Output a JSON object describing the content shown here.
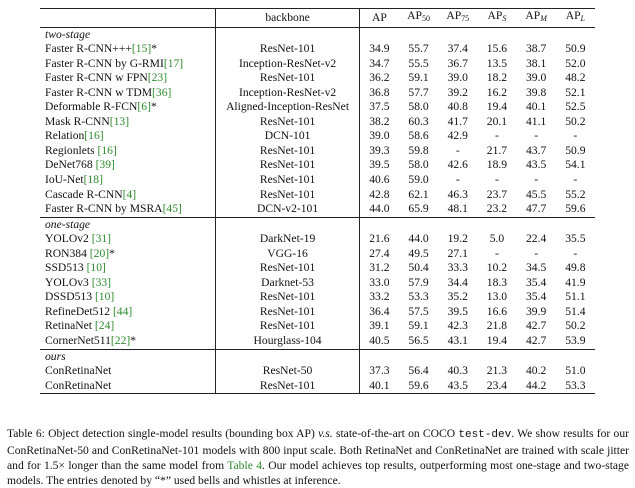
{
  "table": {
    "headers": {
      "method": "",
      "backbone": "backbone",
      "ap": "AP",
      "ap50": {
        "base": "AP",
        "sub": "50"
      },
      "ap75": {
        "base": "AP",
        "sub": "75"
      },
      "aps": {
        "base": "AP",
        "sub": "S"
      },
      "apm": {
        "base": "AP",
        "sub": "M"
      },
      "apl": {
        "base": "AP",
        "sub": "L"
      }
    },
    "sections": [
      {
        "label": "two-stage",
        "rows": [
          {
            "name": "Faster R-CNN+++",
            "cite": "[15]",
            "suffix": "*",
            "backbone": "ResNet-101",
            "values": [
              "34.9",
              "55.7",
              "37.4",
              "15.6",
              "38.7",
              "50.9"
            ]
          },
          {
            "name": "Faster R-CNN by G-RMI",
            "cite": "[17]",
            "suffix": "",
            "backbone": "Inception-ResNet-v2",
            "values": [
              "34.7",
              "55.5",
              "36.7",
              "13.5",
              "38.1",
              "52.0"
            ]
          },
          {
            "name": "Faster R-CNN w FPN",
            "cite": "[23]",
            "suffix": "",
            "backbone": "ResNet-101",
            "values": [
              "36.2",
              "59.1",
              "39.0",
              "18.2",
              "39.0",
              "48.2"
            ]
          },
          {
            "name": "Faster R-CNN w TDM",
            "cite": "[36]",
            "suffix": "",
            "backbone": "Inception-ResNet-v2",
            "values": [
              "36.8",
              "57.7",
              "39.2",
              "16.2",
              "39.8",
              "52.1"
            ]
          },
          {
            "name": "Deformable R-FCN",
            "cite": "[6]",
            "suffix": "*",
            "backbone": "Aligned-Inception-ResNet",
            "values": [
              "37.5",
              "58.0",
              "40.8",
              "19.4",
              "40.1",
              "52.5"
            ]
          },
          {
            "name": "Mask R-CNN",
            "cite": "[13]",
            "suffix": "",
            "backbone": "ResNet-101",
            "values": [
              "38.2",
              "60.3",
              "41.7",
              "20.1",
              "41.1",
              "50.2"
            ]
          },
          {
            "name": "Relation",
            "cite": "[16]",
            "suffix": "",
            "backbone": "DCN-101",
            "values": [
              "39.0",
              "58.6",
              "42.9",
              "-",
              "-",
              "-"
            ]
          },
          {
            "name": "Regionlets ",
            "cite": "[16]",
            "suffix": "",
            "backbone": "ResNet-101",
            "values": [
              "39.3",
              "59.8",
              "-",
              "21.7",
              "43.7",
              "50.9"
            ]
          },
          {
            "name": "DeNet768 ",
            "cite": "[39]",
            "suffix": "",
            "backbone": "ResNet-101",
            "values": [
              "39.5",
              "58.0",
              "42.6",
              "18.9",
              "43.5",
              "54.1"
            ]
          },
          {
            "name": "IoU-Net",
            "cite": "[18]",
            "suffix": "",
            "backbone": "ResNet-101",
            "values": [
              "40.6",
              "59.0",
              "-",
              "-",
              "-",
              "-"
            ]
          },
          {
            "name": "Cascade R-CNN",
            "cite": "[4]",
            "suffix": "",
            "backbone": "ResNet-101",
            "values": [
              "42.8",
              "62.1",
              "46.3",
              "23.7",
              "45.5",
              "55.2"
            ]
          },
          {
            "name": "Faster R-CNN by MSRA",
            "cite": "[45]",
            "suffix": "",
            "backbone": "DCN-v2-101",
            "values": [
              "44.0",
              "65.9",
              "48.1",
              "23.2",
              "47.7",
              "59.6"
            ]
          }
        ]
      },
      {
        "label": "one-stage",
        "rows": [
          {
            "name": "YOLOv2 ",
            "cite": "[31]",
            "suffix": "",
            "backbone": "DarkNet-19",
            "values": [
              "21.6",
              "44.0",
              "19.2",
              "5.0",
              "22.4",
              "35.5"
            ]
          },
          {
            "name": "RON384 ",
            "cite": "[20]",
            "suffix": "*",
            "backbone": "VGG-16",
            "values": [
              "27.4",
              "49.5",
              "27.1",
              "-",
              "-",
              "-"
            ]
          },
          {
            "name": "SSD513 ",
            "cite": "[10]",
            "suffix": "",
            "backbone": "ResNet-101",
            "values": [
              "31.2",
              "50.4",
              "33.3",
              "10.2",
              "34.5",
              "49.8"
            ]
          },
          {
            "name": "YOLOv3 ",
            "cite": "[33]",
            "suffix": "",
            "backbone": "Darknet-53",
            "values": [
              "33.0",
              "57.9",
              "34.4",
              "18.3",
              "35.4",
              "41.9"
            ]
          },
          {
            "name": "DSSD513 ",
            "cite": "[10]",
            "suffix": "",
            "backbone": "ResNet-101",
            "values": [
              "33.2",
              "53.3",
              "35.2",
              "13.0",
              "35.4",
              "51.1"
            ]
          },
          {
            "name": "RefineDet512 ",
            "cite": "[44]",
            "suffix": "",
            "backbone": "ResNet-101",
            "values": [
              "36.4",
              "57.5",
              "39.5",
              "16.6",
              "39.9",
              "51.4"
            ]
          },
          {
            "name": "RetinaNet ",
            "cite": "[24]",
            "suffix": "",
            "backbone": "ResNet-101",
            "values": [
              "39.1",
              "59.1",
              "42.3",
              "21.8",
              "42.7",
              "50.2"
            ]
          },
          {
            "name": "CornerNet511",
            "cite": "[22]",
            "suffix": "*",
            "backbone": "Hourglass-104",
            "values": [
              "40.5",
              "56.5",
              "43.1",
              "19.4",
              "42.7",
              "53.9"
            ]
          }
        ]
      },
      {
        "label": "ours",
        "rows": [
          {
            "name": "ConRetinaNet",
            "cite": "",
            "suffix": "",
            "backbone": "ResNet-50",
            "values": [
              "37.3",
              "56.4",
              "40.3",
              "21.3",
              "40.2",
              "51.0"
            ]
          },
          {
            "name": "ConRetinaNet",
            "cite": "",
            "suffix": "",
            "backbone": "ResNet-101",
            "values": [
              "40.1",
              "59.6",
              "43.5",
              "23.4",
              "44.2",
              "53.3"
            ]
          }
        ]
      }
    ]
  },
  "caption": {
    "p1": "Table 6: Object detection single-model results (bounding box AP) ",
    "vs": "v.s.",
    "p2": " state-of-the-art on COCO ",
    "code": "test-dev",
    "p3": ". We show results for our ConRetinaNet-50 and ConRetinaNet-101 models with 800 input scale. Both RetinaNet and ConRetinaNet are trained with scale jitter and for 1.5× longer than the same model from ",
    "ref": "Table 4",
    "p4": ". Our model achieves top results, outperforming most one-stage and two-stage models. The entries denoted by “*” used bells and whistles at inference."
  },
  "colors": {
    "citation": "#2e8b2e",
    "rule": "#222222"
  }
}
